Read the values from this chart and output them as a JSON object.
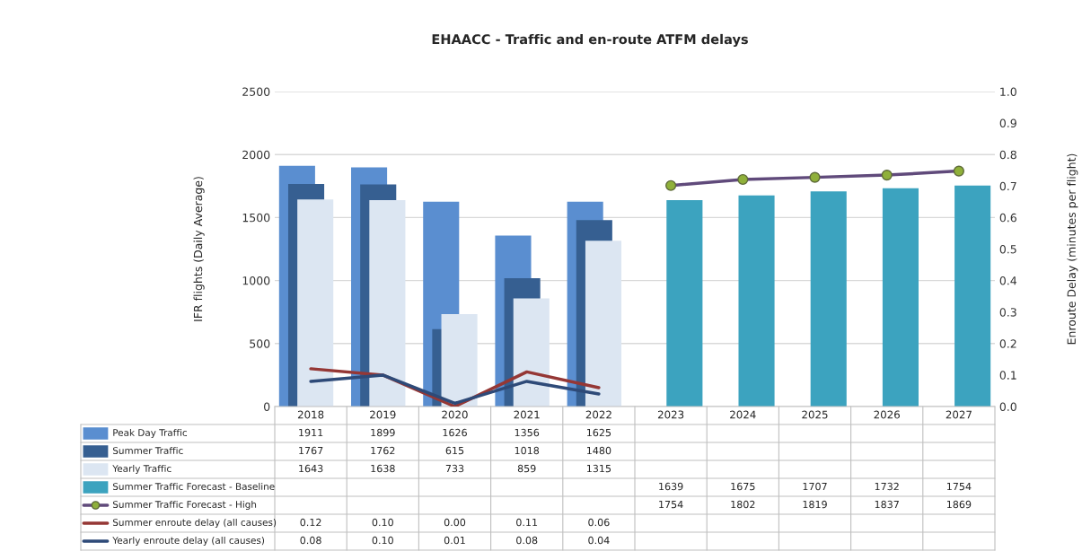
{
  "chart_data": {
    "type": "bar",
    "title": "EHAACC - Traffic and en-route ATFM delays",
    "categories": [
      "2018",
      "2019",
      "2020",
      "2021",
      "2022",
      "2023",
      "2024",
      "2025",
      "2026",
      "2027"
    ],
    "series": [
      {
        "name": "Peak Day Traffic",
        "color": "#5a8ed0",
        "values": [
          1911,
          1899,
          1626,
          1356,
          1625,
          null,
          null,
          null,
          null,
          null
        ],
        "value_labels": [
          "1911",
          "1899",
          "1626",
          "1356",
          "1625",
          null,
          null,
          null,
          null,
          null
        ]
      },
      {
        "name": "Summer Traffic",
        "color": "#365f91",
        "values": [
          1767,
          1762,
          615,
          1018,
          1480,
          null,
          null,
          null,
          null,
          null
        ],
        "value_labels": [
          "1767",
          "1762",
          "615",
          "1018",
          "1480",
          null,
          null,
          null,
          null,
          null
        ]
      },
      {
        "name": "Yearly Traffic",
        "color": "#dce6f2",
        "values": [
          1643,
          1638,
          733,
          859,
          1315,
          null,
          null,
          null,
          null,
          null
        ],
        "value_labels": [
          "1643",
          "1638",
          "733",
          "859",
          "1315",
          null,
          null,
          null,
          null,
          null
        ]
      },
      {
        "name": "Summer Traffic Forecast - Baseline",
        "color": "#3ca3bf",
        "values": [
          null,
          null,
          null,
          null,
          null,
          1639,
          1675,
          1707,
          1732,
          1754
        ],
        "value_labels": [
          null,
          null,
          null,
          null,
          null,
          "1639",
          "1675",
          "1707",
          "1732",
          "1754"
        ]
      },
      {
        "name": "Summer Traffic Forecast - High",
        "type": "line",
        "marker": "circle",
        "color": "#604a7b",
        "colors": [
          null,
          null,
          null,
          null,
          null,
          "#8fb03a",
          "#8fb03a",
          "#8fb03a",
          "#8fb03a",
          "#8fb03a"
        ],
        "values": [
          null,
          null,
          null,
          null,
          null,
          1754,
          1802,
          1819,
          1837,
          1869
        ],
        "value_labels": [
          null,
          null,
          null,
          null,
          null,
          "1754",
          "1802",
          "1819",
          "1837",
          "1869"
        ]
      },
      {
        "name": "Summer enroute delay (all causes)",
        "type": "line",
        "axis": "y2",
        "color": "#953735",
        "values": [
          0.12,
          0.1,
          0.0,
          0.11,
          0.06,
          null,
          null,
          null,
          null,
          null
        ],
        "value_labels": [
          "0.12",
          "0.10",
          "0.00",
          "0.11",
          "0.06",
          null,
          null,
          null,
          null,
          null
        ]
      },
      {
        "name": "Yearly enroute delay (all causes)",
        "type": "line",
        "axis": "y2",
        "color": "#2e4a78",
        "values": [
          0.08,
          0.1,
          0.01,
          0.08,
          0.04,
          null,
          null,
          null,
          null,
          null
        ],
        "value_labels": [
          "0.08",
          "0.10",
          "0.01",
          "0.08",
          "0.04",
          null,
          null,
          null,
          null,
          null
        ]
      }
    ],
    "ylabel": "IFR flights (Daily Average)",
    "y2label": "Enroute Delay (minutes per flight)",
    "ylim": [
      0,
      2500
    ],
    "yticks": [
      0,
      500,
      1000,
      1500,
      2000,
      2500
    ],
    "y2lim": [
      0,
      1.0
    ],
    "y2ticks": [
      {
        "value": 0,
        "label": "0.0"
      },
      0.1,
      0.2,
      0.3,
      0.4,
      0.5,
      0.6,
      0.7,
      0.8,
      0.9,
      {
        "value": 1.0,
        "label": "1.0"
      }
    ],
    "grid": "y",
    "legend": "bottom"
  }
}
